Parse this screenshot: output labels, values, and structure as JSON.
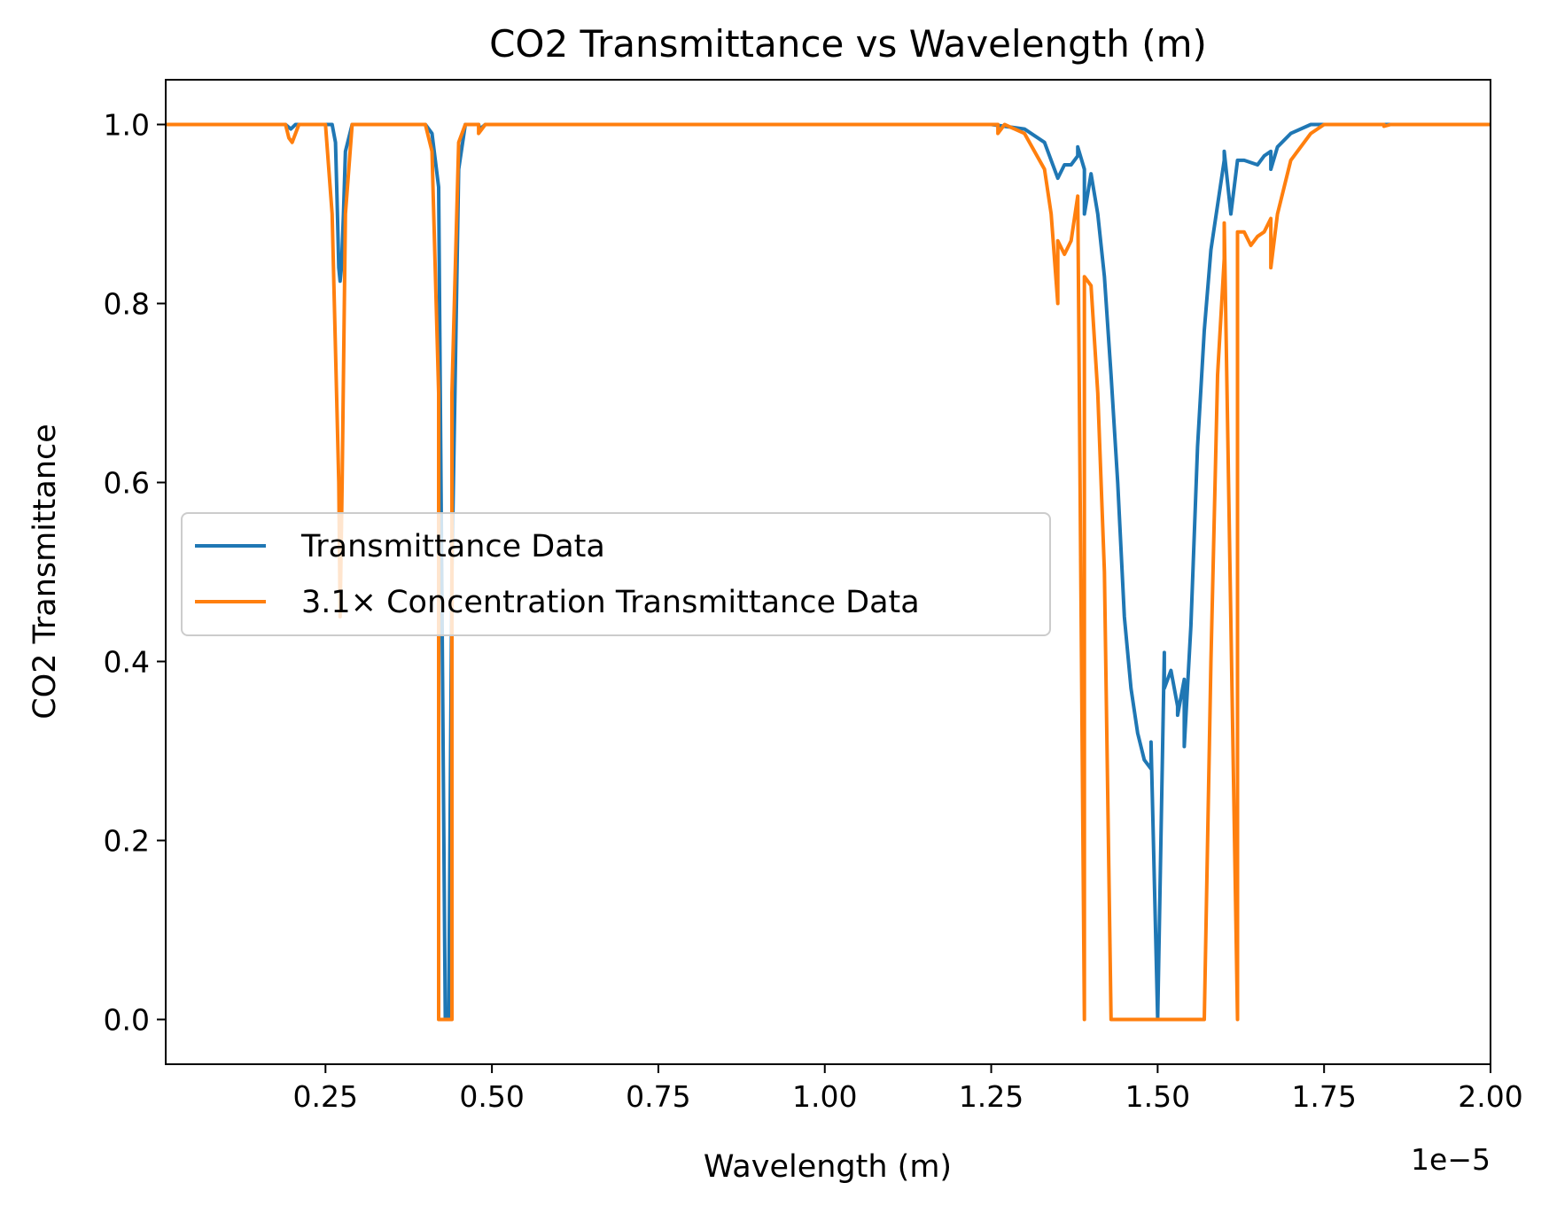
{
  "chart_data": {
    "type": "line",
    "title": "CO2 Transmittance vs Wavelength (m)",
    "xlabel": "Wavelength (m)",
    "ylabel": "CO2 Transmittance",
    "x_offset_label": "1e−5",
    "xlim": [
      1e-07,
      2e-05
    ],
    "ylim": [
      -0.05,
      1.05
    ],
    "x_ticks": [
      2.5e-06,
      5e-06,
      7.5e-06,
      1e-05,
      1.25e-05,
      1.5e-05,
      1.75e-05,
      2e-05
    ],
    "x_tick_labels": [
      "0.25",
      "0.50",
      "0.75",
      "1.00",
      "1.25",
      "1.50",
      "1.75",
      "2.00"
    ],
    "y_ticks": [
      0.0,
      0.2,
      0.4,
      0.6,
      0.8,
      1.0
    ],
    "y_tick_labels": [
      "0.0",
      "0.2",
      "0.4",
      "0.6",
      "0.8",
      "1.0"
    ],
    "grid": false,
    "legend_position": "center-left",
    "series": [
      {
        "name": "Transmittance Data",
        "color": "#1f77b4",
        "points": [
          [
            1e-07,
            1.0
          ],
          [
            1.9e-06,
            1.0
          ],
          [
            1.98e-06,
            0.995
          ],
          [
            2.05e-06,
            1.0
          ],
          [
            2.6e-06,
            1.0
          ],
          [
            2.65e-06,
            0.98
          ],
          [
            2.68e-06,
            0.9
          ],
          [
            2.7e-06,
            0.84
          ],
          [
            2.72e-06,
            0.825
          ],
          [
            2.74e-06,
            0.84
          ],
          [
            2.77e-06,
            0.9
          ],
          [
            2.8e-06,
            0.97
          ],
          [
            2.9e-06,
            1.0
          ],
          [
            4e-06,
            1.0
          ],
          [
            4.1e-06,
            0.99
          ],
          [
            4.2e-06,
            0.93
          ],
          [
            4.3e-06,
            0.0
          ],
          [
            4.35e-06,
            0.0
          ],
          [
            4.4e-06,
            0.5
          ],
          [
            4.5e-06,
            0.95
          ],
          [
            4.6e-06,
            1.0
          ],
          [
            4.8e-06,
            1.0
          ],
          [
            4.82e-06,
            0.995
          ],
          [
            4.9e-06,
            1.0
          ],
          [
            1.25e-05,
            1.0
          ],
          [
            1.3e-05,
            0.995
          ],
          [
            1.33e-05,
            0.98
          ],
          [
            1.34e-05,
            0.96
          ],
          [
            1.35e-05,
            0.94
          ],
          [
            1.36e-05,
            0.955
          ],
          [
            1.37e-05,
            0.955
          ],
          [
            1.38e-05,
            0.965
          ],
          [
            1.38e-05,
            0.975
          ],
          [
            1.39e-05,
            0.95
          ],
          [
            1.39e-05,
            0.9
          ],
          [
            1.4e-05,
            0.945
          ],
          [
            1.41e-05,
            0.9
          ],
          [
            1.42e-05,
            0.83
          ],
          [
            1.43e-05,
            0.72
          ],
          [
            1.44e-05,
            0.6
          ],
          [
            1.45e-05,
            0.45
          ],
          [
            1.46e-05,
            0.37
          ],
          [
            1.47e-05,
            0.32
          ],
          [
            1.48e-05,
            0.29
          ],
          [
            1.49e-05,
            0.28
          ],
          [
            1.49e-05,
            0.31
          ],
          [
            1.5e-05,
            0.0
          ],
          [
            1.5e-05,
            0.0
          ],
          [
            1.51e-05,
            0.41
          ],
          [
            1.51e-05,
            0.37
          ],
          [
            1.52e-05,
            0.39
          ],
          [
            1.53e-05,
            0.35
          ],
          [
            1.53e-05,
            0.34
          ],
          [
            1.54e-05,
            0.38
          ],
          [
            1.54e-05,
            0.305
          ],
          [
            1.55e-05,
            0.44
          ],
          [
            1.56e-05,
            0.64
          ],
          [
            1.57e-05,
            0.77
          ],
          [
            1.58e-05,
            0.86
          ],
          [
            1.6e-05,
            0.96
          ],
          [
            1.6e-05,
            0.97
          ],
          [
            1.61e-05,
            0.9
          ],
          [
            1.62e-05,
            0.96
          ],
          [
            1.63e-05,
            0.96
          ],
          [
            1.65e-05,
            0.955
          ],
          [
            1.66e-05,
            0.965
          ],
          [
            1.67e-05,
            0.97
          ],
          [
            1.67e-05,
            0.95
          ],
          [
            1.68e-05,
            0.975
          ],
          [
            1.7e-05,
            0.99
          ],
          [
            1.73e-05,
            1.0
          ],
          [
            2e-05,
            1.0
          ]
        ]
      },
      {
        "name": "3.1× Concentration Transmittance Data",
        "color": "#ff7f0e",
        "points": [
          [
            1e-07,
            1.0
          ],
          [
            1.9e-06,
            1.0
          ],
          [
            1.95e-06,
            0.985
          ],
          [
            2e-06,
            0.98
          ],
          [
            2.1e-06,
            1.0
          ],
          [
            2.5e-06,
            1.0
          ],
          [
            2.6e-06,
            0.9
          ],
          [
            2.7e-06,
            0.6
          ],
          [
            2.72e-06,
            0.45
          ],
          [
            2.75e-06,
            0.6
          ],
          [
            2.8e-06,
            0.9
          ],
          [
            2.9e-06,
            1.0
          ],
          [
            4e-06,
            1.0
          ],
          [
            4.1e-06,
            0.97
          ],
          [
            4.2e-06,
            0.7
          ],
          [
            4.2e-06,
            0.0
          ],
          [
            4.4e-06,
            0.0
          ],
          [
            4.4e-06,
            0.7
          ],
          [
            4.5e-06,
            0.98
          ],
          [
            4.6e-06,
            1.0
          ],
          [
            4.8e-06,
            1.0
          ],
          [
            4.8e-06,
            0.99
          ],
          [
            4.9e-06,
            1.0
          ],
          [
            1.26e-05,
            1.0
          ],
          [
            1.26e-05,
            0.99
          ],
          [
            1.27e-05,
            1.0
          ],
          [
            1.3e-05,
            0.99
          ],
          [
            1.33e-05,
            0.95
          ],
          [
            1.34e-05,
            0.9
          ],
          [
            1.35e-05,
            0.8
          ],
          [
            1.35e-05,
            0.87
          ],
          [
            1.36e-05,
            0.855
          ],
          [
            1.37e-05,
            0.87
          ],
          [
            1.38e-05,
            0.92
          ],
          [
            1.39e-05,
            0.0
          ],
          [
            1.39e-05,
            0.0
          ],
          [
            1.39e-05,
            0.83
          ],
          [
            1.4e-05,
            0.82
          ],
          [
            1.41e-05,
            0.7
          ],
          [
            1.42e-05,
            0.5
          ],
          [
            1.43e-05,
            0.0
          ],
          [
            1.57e-05,
            0.0
          ],
          [
            1.58e-05,
            0.4
          ],
          [
            1.59e-05,
            0.72
          ],
          [
            1.6e-05,
            0.85
          ],
          [
            1.6e-05,
            0.89
          ],
          [
            1.62e-05,
            0.0
          ],
          [
            1.62e-05,
            0.0
          ],
          [
            1.62e-05,
            0.88
          ],
          [
            1.63e-05,
            0.88
          ],
          [
            1.64e-05,
            0.865
          ],
          [
            1.65e-05,
            0.875
          ],
          [
            1.66e-05,
            0.88
          ],
          [
            1.67e-05,
            0.895
          ],
          [
            1.67e-05,
            0.84
          ],
          [
            1.68e-05,
            0.9
          ],
          [
            1.7e-05,
            0.96
          ],
          [
            1.73e-05,
            0.99
          ],
          [
            1.75e-05,
            1.0
          ],
          [
            1.84e-05,
            1.0
          ],
          [
            1.84e-05,
            0.998
          ],
          [
            1.85e-05,
            1.0
          ],
          [
            2e-05,
            1.0
          ]
        ]
      }
    ]
  }
}
